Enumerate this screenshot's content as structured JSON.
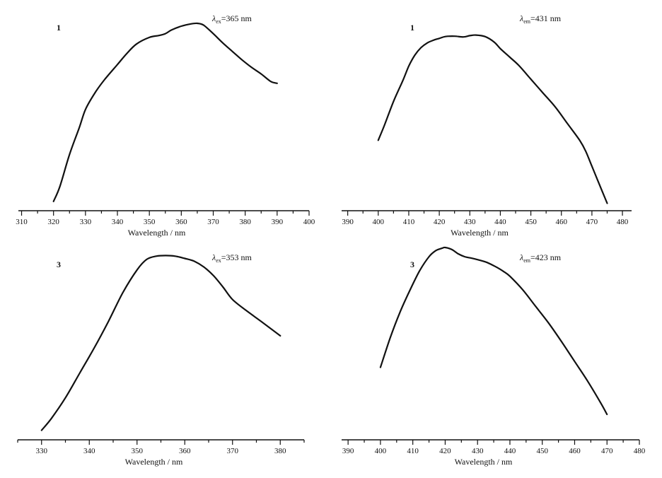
{
  "chart_data": [
    {
      "type": "line",
      "title": "",
      "panel_label": "1",
      "annotation": {
        "symbol": "λ",
        "sub": "ex",
        "text": "=365 nm"
      },
      "xlabel": "Wavelength / nm",
      "ylabel": "",
      "xlim": [
        309,
        400
      ],
      "ylim": [
        0,
        1
      ],
      "xticks": [
        310,
        320,
        330,
        340,
        350,
        360,
        370,
        380,
        390,
        400
      ],
      "grid": false,
      "x": [
        320,
        322,
        325,
        328,
        330,
        333,
        336,
        340,
        343,
        346,
        350,
        353,
        355,
        357,
        360,
        363,
        365,
        367,
        370,
        373,
        376,
        379,
        382,
        385,
        388,
        390
      ],
      "y": [
        0.05,
        0.13,
        0.3,
        0.44,
        0.54,
        0.63,
        0.7,
        0.78,
        0.84,
        0.89,
        0.925,
        0.935,
        0.945,
        0.965,
        0.985,
        0.997,
        1.0,
        0.99,
        0.945,
        0.895,
        0.85,
        0.805,
        0.765,
        0.73,
        0.69,
        0.68
      ]
    },
    {
      "type": "line",
      "title": "",
      "panel_label": "1",
      "annotation": {
        "symbol": "λ",
        "sub": "em",
        "text": "=431 nm"
      },
      "xlabel": "Wavelength / nm",
      "ylabel": "",
      "xlim": [
        388,
        483
      ],
      "ylim": [
        0,
        1
      ],
      "xticks": [
        390,
        400,
        410,
        420,
        430,
        440,
        450,
        460,
        470,
        480
      ],
      "grid": false,
      "x": [
        400,
        402,
        405,
        408,
        410,
        412,
        414,
        416,
        418,
        420,
        422,
        425,
        428,
        430,
        432,
        435,
        438,
        440,
        443,
        446,
        450,
        454,
        458,
        462,
        466,
        468,
        470,
        472,
        475
      ],
      "y": [
        0.38,
        0.46,
        0.59,
        0.7,
        0.78,
        0.84,
        0.88,
        0.905,
        0.92,
        0.93,
        0.94,
        0.942,
        0.938,
        0.945,
        0.948,
        0.94,
        0.91,
        0.875,
        0.83,
        0.785,
        0.71,
        0.635,
        0.56,
        0.47,
        0.38,
        0.32,
        0.24,
        0.16,
        0.04
      ]
    },
    {
      "type": "line",
      "title": "",
      "panel_label": "3",
      "annotation": {
        "symbol": "λ",
        "sub": "ex",
        "text": "=353 nm"
      },
      "xlabel": "Wavelength / nm",
      "ylabel": "",
      "xlim": [
        325,
        385
      ],
      "ylim": [
        0,
        1
      ],
      "xticks": [
        330,
        340,
        350,
        360,
        370,
        380
      ],
      "grid": false,
      "x": [
        330,
        332,
        335,
        338,
        341,
        344,
        347,
        350,
        352,
        354,
        356,
        358,
        360,
        362,
        364,
        366,
        368,
        370,
        373,
        376,
        380
      ],
      "y": [
        0.05,
        0.11,
        0.22,
        0.35,
        0.48,
        0.62,
        0.77,
        0.89,
        0.945,
        0.962,
        0.965,
        0.962,
        0.95,
        0.935,
        0.905,
        0.86,
        0.8,
        0.735,
        0.675,
        0.62,
        0.545
      ]
    },
    {
      "type": "line",
      "title": "",
      "panel_label": "3",
      "annotation": {
        "symbol": "λ",
        "sub": "em",
        "text": "=423 nm"
      },
      "xlabel": "Wavelength / nm",
      "ylabel": "",
      "xlim": [
        388,
        480
      ],
      "ylim": [
        0,
        1
      ],
      "xticks": [
        390,
        400,
        410,
        420,
        430,
        440,
        450,
        460,
        470,
        480
      ],
      "grid": false,
      "x": [
        400,
        403,
        406,
        409,
        412,
        415,
        417,
        419,
        420,
        422,
        424,
        426,
        428,
        430,
        433,
        436,
        438,
        440,
        444,
        448,
        452,
        456,
        460,
        464,
        468,
        470
      ],
      "y": [
        0.37,
        0.52,
        0.65,
        0.76,
        0.86,
        0.935,
        0.965,
        0.978,
        0.982,
        0.972,
        0.95,
        0.935,
        0.928,
        0.92,
        0.905,
        0.88,
        0.86,
        0.835,
        0.765,
        0.68,
        0.595,
        0.5,
        0.4,
        0.3,
        0.19,
        0.13
      ]
    }
  ]
}
